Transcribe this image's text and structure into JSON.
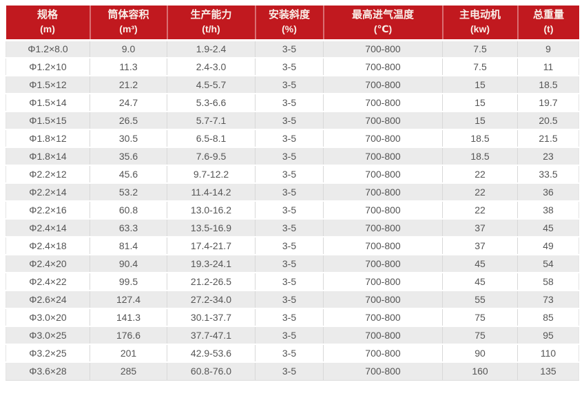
{
  "theme": {
    "header_bg": "#c1191f",
    "header_text": "#f9efe9",
    "header_divider": "#d96f72",
    "row_alt_bg": "#ebebeb",
    "row_bg": "#ffffff",
    "cell_text": "#555555",
    "grid_line": "#d8d8d8"
  },
  "table": {
    "columns": [
      {
        "id": "spec",
        "title": "规格",
        "unit": "(m)"
      },
      {
        "id": "volume",
        "title": "筒体容积",
        "unit": "(m³)"
      },
      {
        "id": "capacity",
        "title": "生产能力",
        "unit": "(t/h)"
      },
      {
        "id": "slope",
        "title": "安装斜度",
        "unit": "(%)"
      },
      {
        "id": "temperature",
        "title": "最高进气温度",
        "unit": "(℃)"
      },
      {
        "id": "motor",
        "title": "主电动机",
        "unit": "(kw)"
      },
      {
        "id": "weight",
        "title": "总重量",
        "unit": "(t)"
      }
    ],
    "rows": [
      [
        "Φ1.2×8.0",
        "9.0",
        "1.9-2.4",
        "3-5",
        "700-800",
        "7.5",
        "9"
      ],
      [
        "Φ1.2×10",
        "11.3",
        "2.4-3.0",
        "3-5",
        "700-800",
        "7.5",
        "11"
      ],
      [
        "Φ1.5×12",
        "21.2",
        "4.5-5.7",
        "3-5",
        "700-800",
        "15",
        "18.5"
      ],
      [
        "Φ1.5×14",
        "24.7",
        "5.3-6.6",
        "3-5",
        "700-800",
        "15",
        "19.7"
      ],
      [
        "Φ1.5×15",
        "26.5",
        "5.7-7.1",
        "3-5",
        "700-800",
        "15",
        "20.5"
      ],
      [
        "Φ1.8×12",
        "30.5",
        "6.5-8.1",
        "3-5",
        "700-800",
        "18.5",
        "21.5"
      ],
      [
        "Φ1.8×14",
        "35.6",
        "7.6-9.5",
        "3-5",
        "700-800",
        "18.5",
        "23"
      ],
      [
        "Φ2.2×12",
        "45.6",
        "9.7-12.2",
        "3-5",
        "700-800",
        "22",
        "33.5"
      ],
      [
        "Φ2.2×14",
        "53.2",
        "11.4-14.2",
        "3-5",
        "700-800",
        "22",
        "36"
      ],
      [
        "Φ2.2×16",
        "60.8",
        "13.0-16.2",
        "3-5",
        "700-800",
        "22",
        "38"
      ],
      [
        "Φ2.4×14",
        "63.3",
        "13.5-16.9",
        "3-5",
        "700-800",
        "37",
        "45"
      ],
      [
        "Φ2.4×18",
        "81.4",
        "17.4-21.7",
        "3-5",
        "700-800",
        "37",
        "49"
      ],
      [
        "Φ2.4×20",
        "90.4",
        "19.3-24.1",
        "3-5",
        "700-800",
        "45",
        "54"
      ],
      [
        "Φ2.4×22",
        "99.5",
        "21.2-26.5",
        "3-5",
        "700-800",
        "45",
        "58"
      ],
      [
        "Φ2.6×24",
        "127.4",
        "27.2-34.0",
        "3-5",
        "700-800",
        "55",
        "73"
      ],
      [
        "Φ3.0×20",
        "141.3",
        "30.1-37.7",
        "3-5",
        "700-800",
        "75",
        "85"
      ],
      [
        "Φ3.0×25",
        "176.6",
        "37.7-47.1",
        "3-5",
        "700-800",
        "75",
        "95"
      ],
      [
        "Φ3.2×25",
        "201",
        "42.9-53.6",
        "3-5",
        "700-800",
        "90",
        "110"
      ],
      [
        "Φ3.6×28",
        "285",
        "60.8-76.0",
        "3-5",
        "700-800",
        "160",
        "135"
      ]
    ]
  }
}
